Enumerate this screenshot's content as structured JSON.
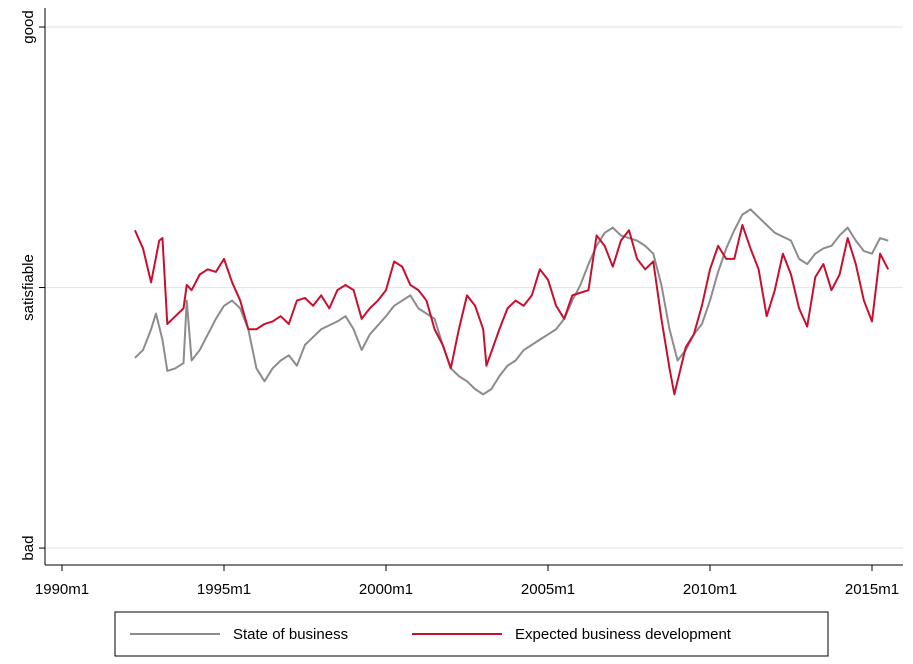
{
  "chart_data": {
    "type": "line",
    "xlim": [
      1989.475,
      2015.957
    ],
    "ylim": [
      -1.065,
      1.073
    ],
    "xticks": [
      {
        "value": 1990,
        "label": "1990m1"
      },
      {
        "value": 1995,
        "label": "1995m1"
      },
      {
        "value": 2000,
        "label": "2000m1"
      },
      {
        "value": 2005,
        "label": "2005m1"
      },
      {
        "value": 2010,
        "label": "2010m1"
      },
      {
        "value": 2015,
        "label": "2015m1"
      }
    ],
    "yticks": [
      {
        "value": -1,
        "label": "bad"
      },
      {
        "value": 0,
        "label": "satisfiable"
      },
      {
        "value": 1,
        "label": "good"
      }
    ],
    "grid": true,
    "legend": "bottom",
    "series": [
      {
        "name": "State of business",
        "color": "#8c8c8c",
        "x": [
          1992.25,
          1992.5,
          1992.75,
          1992.9,
          1993.1,
          1993.25,
          1993.5,
          1993.75,
          1993.85,
          1994.0,
          1994.25,
          1994.5,
          1994.75,
          1995.0,
          1995.25,
          1995.5,
          1995.75,
          1996.0,
          1996.25,
          1996.5,
          1996.75,
          1997.0,
          1997.25,
          1997.5,
          1997.75,
          1998.0,
          1998.5,
          1998.75,
          1999.0,
          1999.25,
          1999.5,
          2000.0,
          2000.25,
          2000.5,
          2000.75,
          2001.0,
          2001.5,
          2001.75,
          2002.0,
          2002.25,
          2002.5,
          2002.75,
          2003.0,
          2003.25,
          2003.5,
          2003.75,
          2004.0,
          2004.25,
          2004.5,
          2004.75,
          2005.0,
          2005.25,
          2005.5,
          2005.75,
          2006.0,
          2006.25,
          2006.5,
          2006.75,
          2007.0,
          2007.25,
          2007.5,
          2007.75,
          2008.0,
          2008.25,
          2008.5,
          2008.75,
          2009.0,
          2009.25,
          2009.5,
          2009.75,
          2010.0,
          2010.25,
          2010.5,
          2010.75,
          2011.0,
          2011.25,
          2011.5,
          2011.75,
          2012.0,
          2012.5,
          2012.75,
          2013.0,
          2013.25,
          2013.5,
          2013.75,
          2014.0,
          2014.25,
          2014.5,
          2014.75,
          2015.0,
          2015.25,
          2015.5
        ],
        "values": [
          -0.27,
          -0.24,
          -0.16,
          -0.1,
          -0.2,
          -0.32,
          -0.31,
          -0.29,
          -0.05,
          -0.28,
          -0.24,
          -0.18,
          -0.12,
          -0.07,
          -0.05,
          -0.08,
          -0.16,
          -0.31,
          -0.36,
          -0.31,
          -0.28,
          -0.26,
          -0.3,
          -0.22,
          -0.19,
          -0.16,
          -0.13,
          -0.11,
          -0.16,
          -0.24,
          -0.18,
          -0.11,
          -0.07,
          -0.05,
          -0.03,
          -0.08,
          -0.12,
          -0.22,
          -0.31,
          -0.34,
          -0.36,
          -0.39,
          -0.41,
          -0.39,
          -0.34,
          -0.3,
          -0.28,
          -0.24,
          -0.22,
          -0.2,
          -0.18,
          -0.16,
          -0.12,
          -0.05,
          0.01,
          0.09,
          0.16,
          0.21,
          0.23,
          0.2,
          0.19,
          0.18,
          0.16,
          0.13,
          0.01,
          -0.16,
          -0.28,
          -0.24,
          -0.18,
          -0.14,
          -0.05,
          0.06,
          0.15,
          0.22,
          0.28,
          0.3,
          0.27,
          0.24,
          0.21,
          0.18,
          0.11,
          0.09,
          0.13,
          0.15,
          0.16,
          0.2,
          0.23,
          0.18,
          0.14,
          0.13,
          0.19,
          0.18
        ]
      },
      {
        "name": "Expected business development",
        "color": "#c8102e",
        "x": [
          1992.25,
          1992.5,
          1992.75,
          1993.0,
          1993.1,
          1993.25,
          1993.5,
          1993.75,
          1993.85,
          1994.0,
          1994.25,
          1994.5,
          1994.75,
          1995.0,
          1995.25,
          1995.5,
          1995.75,
          1996.0,
          1996.25,
          1996.5,
          1996.75,
          1997.0,
          1997.25,
          1997.5,
          1997.75,
          1998.0,
          1998.25,
          1998.5,
          1998.75,
          1999.0,
          1999.25,
          1999.5,
          1999.75,
          2000.0,
          2000.25,
          2000.5,
          2000.75,
          2001.0,
          2001.25,
          2001.5,
          2001.75,
          2002.0,
          2002.25,
          2002.5,
          2002.75,
          2003.0,
          2003.1,
          2003.5,
          2003.75,
          2004.0,
          2004.25,
          2004.5,
          2004.75,
          2005.0,
          2005.25,
          2005.5,
          2005.75,
          2006.0,
          2006.25,
          2006.5,
          2006.75,
          2007.0,
          2007.25,
          2007.5,
          2007.75,
          2008.0,
          2008.25,
          2008.5,
          2008.75,
          2008.9,
          2009.25,
          2009.5,
          2009.75,
          2010.0,
          2010.25,
          2010.5,
          2010.75,
          2011.0,
          2011.25,
          2011.5,
          2011.75,
          2012.0,
          2012.25,
          2012.5,
          2012.75,
          2013.0,
          2013.25,
          2013.5,
          2013.75,
          2014.0,
          2014.25,
          2014.5,
          2014.75,
          2015.0,
          2015.25,
          2015.5
        ],
        "values": [
          0.22,
          0.15,
          0.02,
          0.18,
          0.19,
          -0.14,
          -0.11,
          -0.08,
          0.01,
          -0.01,
          0.05,
          0.07,
          0.06,
          0.11,
          0.02,
          -0.05,
          -0.16,
          -0.16,
          -0.14,
          -0.13,
          -0.11,
          -0.14,
          -0.05,
          -0.04,
          -0.07,
          -0.03,
          -0.08,
          -0.01,
          0.01,
          -0.01,
          -0.12,
          -0.08,
          -0.05,
          -0.01,
          0.1,
          0.08,
          0.01,
          -0.01,
          -0.05,
          -0.16,
          -0.22,
          -0.31,
          -0.16,
          -0.03,
          -0.07,
          -0.16,
          -0.3,
          -0.16,
          -0.08,
          -0.05,
          -0.07,
          -0.03,
          0.07,
          0.03,
          -0.07,
          -0.12,
          -0.03,
          -0.02,
          -0.01,
          0.2,
          0.16,
          0.08,
          0.18,
          0.22,
          0.11,
          0.07,
          0.1,
          -0.12,
          -0.31,
          -0.41,
          -0.23,
          -0.18,
          -0.07,
          0.07,
          0.16,
          0.11,
          0.11,
          0.24,
          0.15,
          0.07,
          -0.11,
          -0.01,
          0.13,
          0.05,
          -0.08,
          -0.15,
          0.04,
          0.09,
          -0.01,
          0.05,
          0.19,
          0.09,
          -0.05,
          -0.13,
          0.13,
          0.07
        ]
      }
    ]
  }
}
